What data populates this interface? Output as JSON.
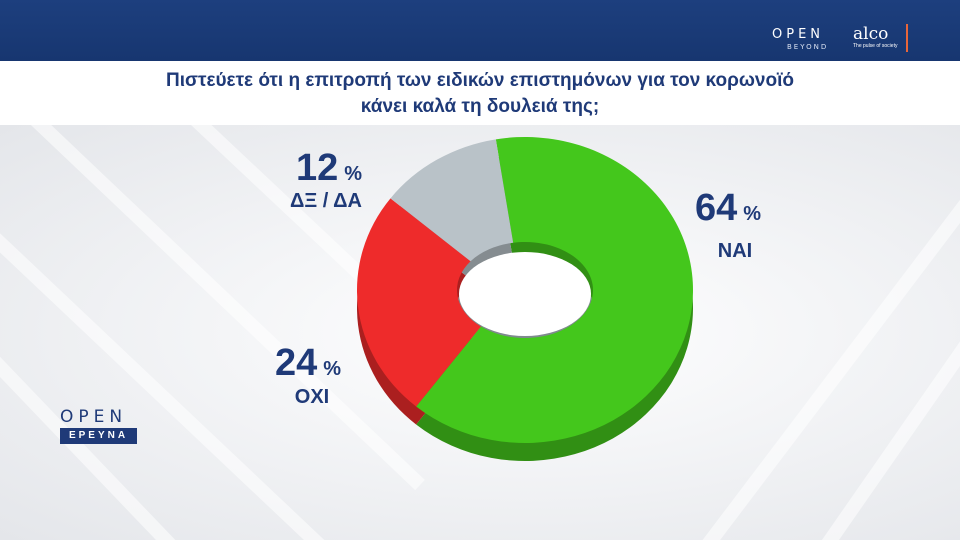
{
  "header": {
    "brand_open": "OPEN",
    "brand_beyond": "BEYOND",
    "brand_alco": "alco",
    "brand_alco_tagline": "The pulse of society"
  },
  "logo": {
    "open": "OPEN",
    "erevna": "ΕΡΕΥΝΑ"
  },
  "colors": {
    "header_bg": "#1d3f7e",
    "title_text": "#1f3a78",
    "accent_orange": "#e8663a"
  },
  "chart_data": {
    "type": "pie",
    "title": "Πιστεύετε ότι η επιτροπή των ειδικών επιστημόνων για τον κορωνοϊό κάνει καλά τη δουλειά της;",
    "title_lines": [
      "Πιστεύετε ότι η επιτροπή των ειδικών επιστημόνων για τον κορωνοϊό",
      "κάνει καλά τη δουλειά της;"
    ],
    "unit": "%",
    "slices": [
      {
        "label": "ΝΑΙ",
        "value": 64,
        "value_text": "64",
        "color": "#44c71c"
      },
      {
        "label": "ΟΧΙ",
        "value": 24,
        "value_text": "24",
        "color": "#ee2b2b"
      },
      {
        "label": "ΔΞ / ΔΑ",
        "value": 12,
        "value_text": "12",
        "color": "#b9c2c8"
      }
    ]
  }
}
